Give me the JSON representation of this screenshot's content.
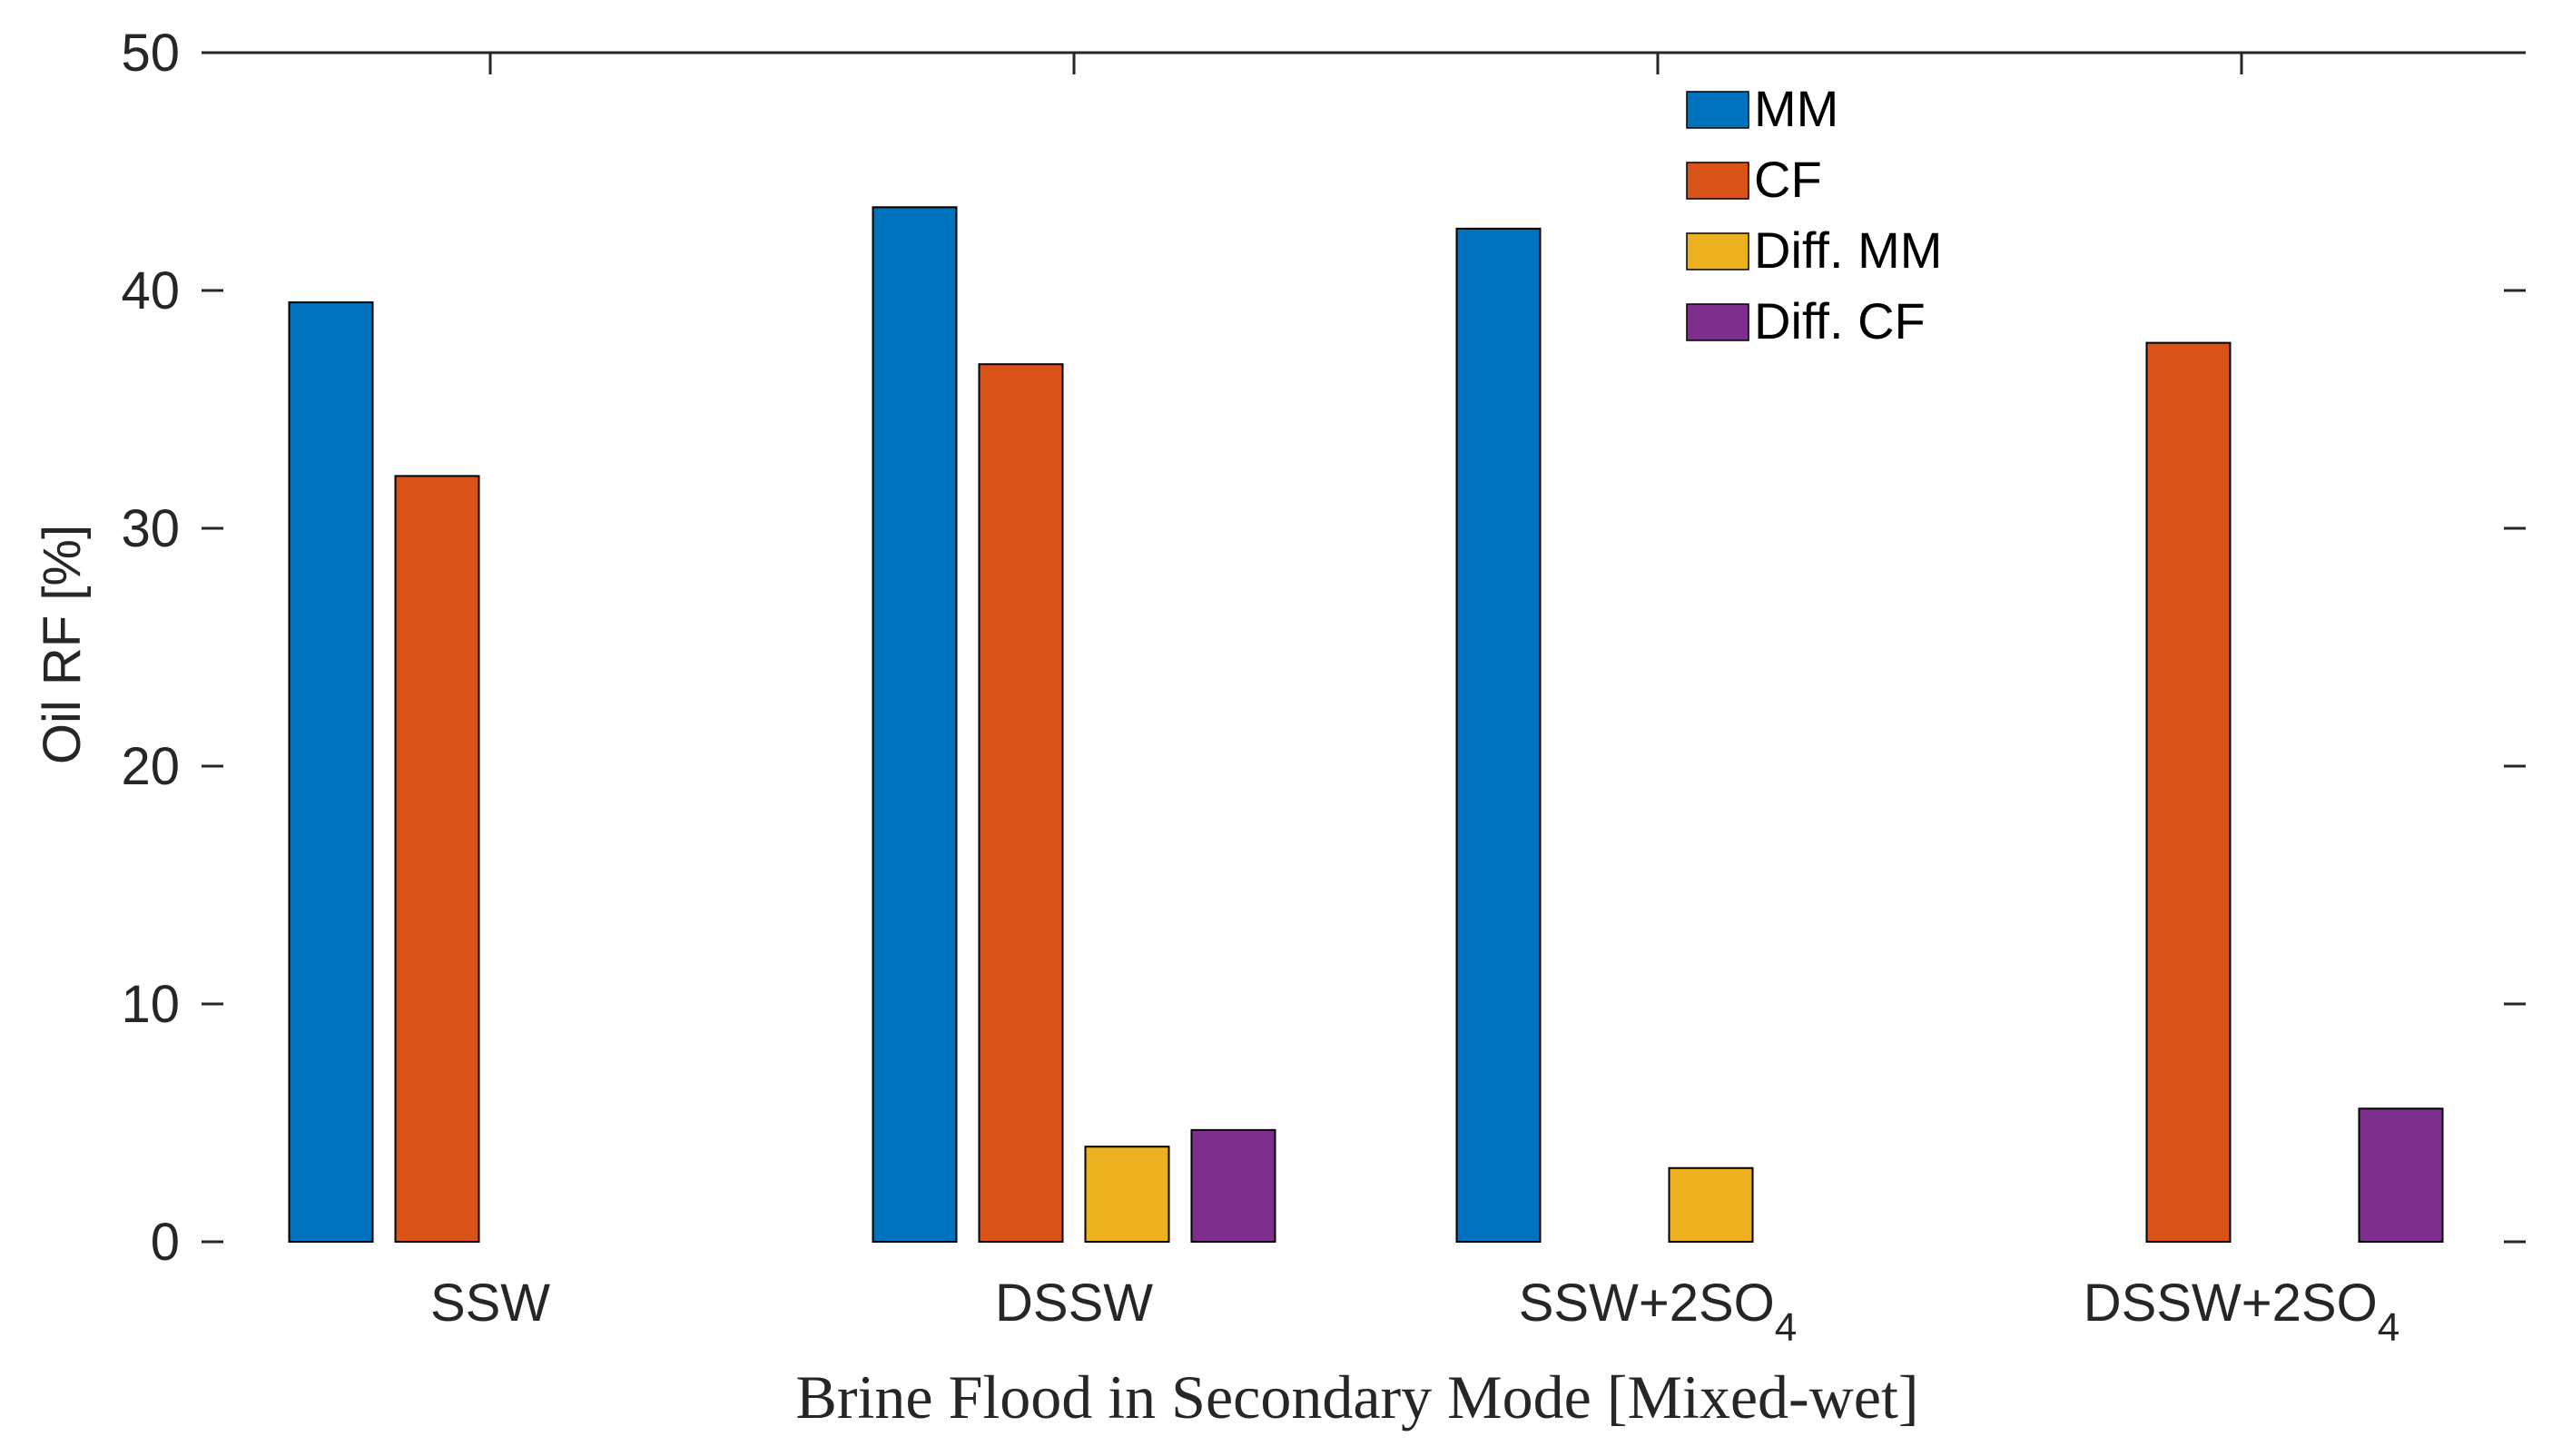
{
  "chart_data": {
    "type": "bar",
    "title": "",
    "xlabel": "Brine Flood in Secondary Mode [Mixed-wet]",
    "ylabel": "Oil RF [%]",
    "ylim": [
      0,
      50
    ],
    "yticks": [
      "0",
      "10",
      "20",
      "30",
      "40",
      "50"
    ],
    "categories": [
      {
        "base": "SSW",
        "sub": ""
      },
      {
        "base": "DSSW",
        "sub": ""
      },
      {
        "base": "SSW+2SO",
        "sub": "4"
      },
      {
        "base": "DSSW+2SO",
        "sub": "4"
      }
    ],
    "series": [
      {
        "name": "MM",
        "color": "#0072BD",
        "values": [
          39.5,
          43.5,
          42.6,
          0
        ]
      },
      {
        "name": "CF",
        "color": "#D95319",
        "values": [
          32.2,
          36.9,
          0,
          37.8
        ]
      },
      {
        "name": "Diff. MM",
        "color": "#EDB120",
        "values": [
          0,
          4.0,
          3.1,
          0
        ]
      },
      {
        "name": "Diff. CF",
        "color": "#7E2F8E",
        "values": [
          0,
          4.7,
          0,
          5.6
        ]
      }
    ],
    "legend": {
      "location": "top-right-inside"
    },
    "grid": false
  }
}
